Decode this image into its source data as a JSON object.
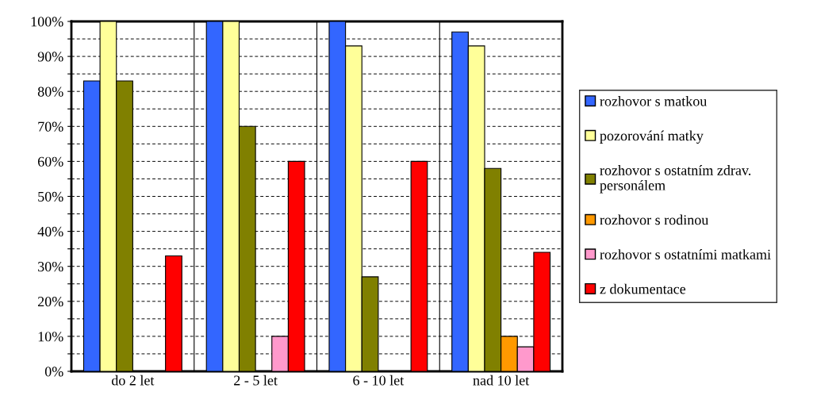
{
  "chart_data": {
    "type": "bar",
    "categories": [
      "do 2 let",
      "2 - 5 let",
      "6 - 10 let",
      "nad 10 let"
    ],
    "series": [
      {
        "name": "rozhovor s matkou",
        "color": "#3366ff",
        "values": [
          83,
          100,
          100,
          97
        ]
      },
      {
        "name": "pozorování matky",
        "color": "#ffff99",
        "values": [
          100,
          100,
          93,
          93
        ]
      },
      {
        "name": "rozhovor s ostatním zdrav.\npersonálem",
        "color": "#808000",
        "values": [
          83,
          70,
          27,
          58
        ]
      },
      {
        "name": "rozhovor s rodinou",
        "color": "#ff9900",
        "values": [
          0,
          0,
          0,
          10
        ]
      },
      {
        "name": "rozhovor s ostatními matkami",
        "color": "#ff99cc",
        "values": [
          0,
          10,
          0,
          7
        ]
      },
      {
        "name": "z dokumentace",
        "color": "#ff0000",
        "values": [
          33,
          60,
          60,
          34
        ]
      }
    ],
    "ylim": [
      0,
      100
    ],
    "yticks": [
      {
        "value": 0,
        "label": "0%"
      },
      {
        "value": 5,
        "label": null
      },
      {
        "value": 10,
        "label": "10%"
      },
      {
        "value": 15,
        "label": null
      },
      {
        "value": 20,
        "label": "20%"
      },
      {
        "value": 25,
        "label": null
      },
      {
        "value": 30,
        "label": "30%"
      },
      {
        "value": 35,
        "label": null
      },
      {
        "value": 40,
        "label": "40%"
      },
      {
        "value": 45,
        "label": null
      },
      {
        "value": 50,
        "label": "50%"
      },
      {
        "value": 55,
        "label": null
      },
      {
        "value": 60,
        "label": "60%"
      },
      {
        "value": 65,
        "label": null
      },
      {
        "value": 70,
        "label": "70%"
      },
      {
        "value": 75,
        "label": null
      },
      {
        "value": 80,
        "label": "80%"
      },
      {
        "value": 85,
        "label": null
      },
      {
        "value": 90,
        "label": "90%"
      },
      {
        "value": 95,
        "label": null
      },
      {
        "value": 100,
        "label": "100%"
      }
    ],
    "grid": "y",
    "legend": "right"
  }
}
